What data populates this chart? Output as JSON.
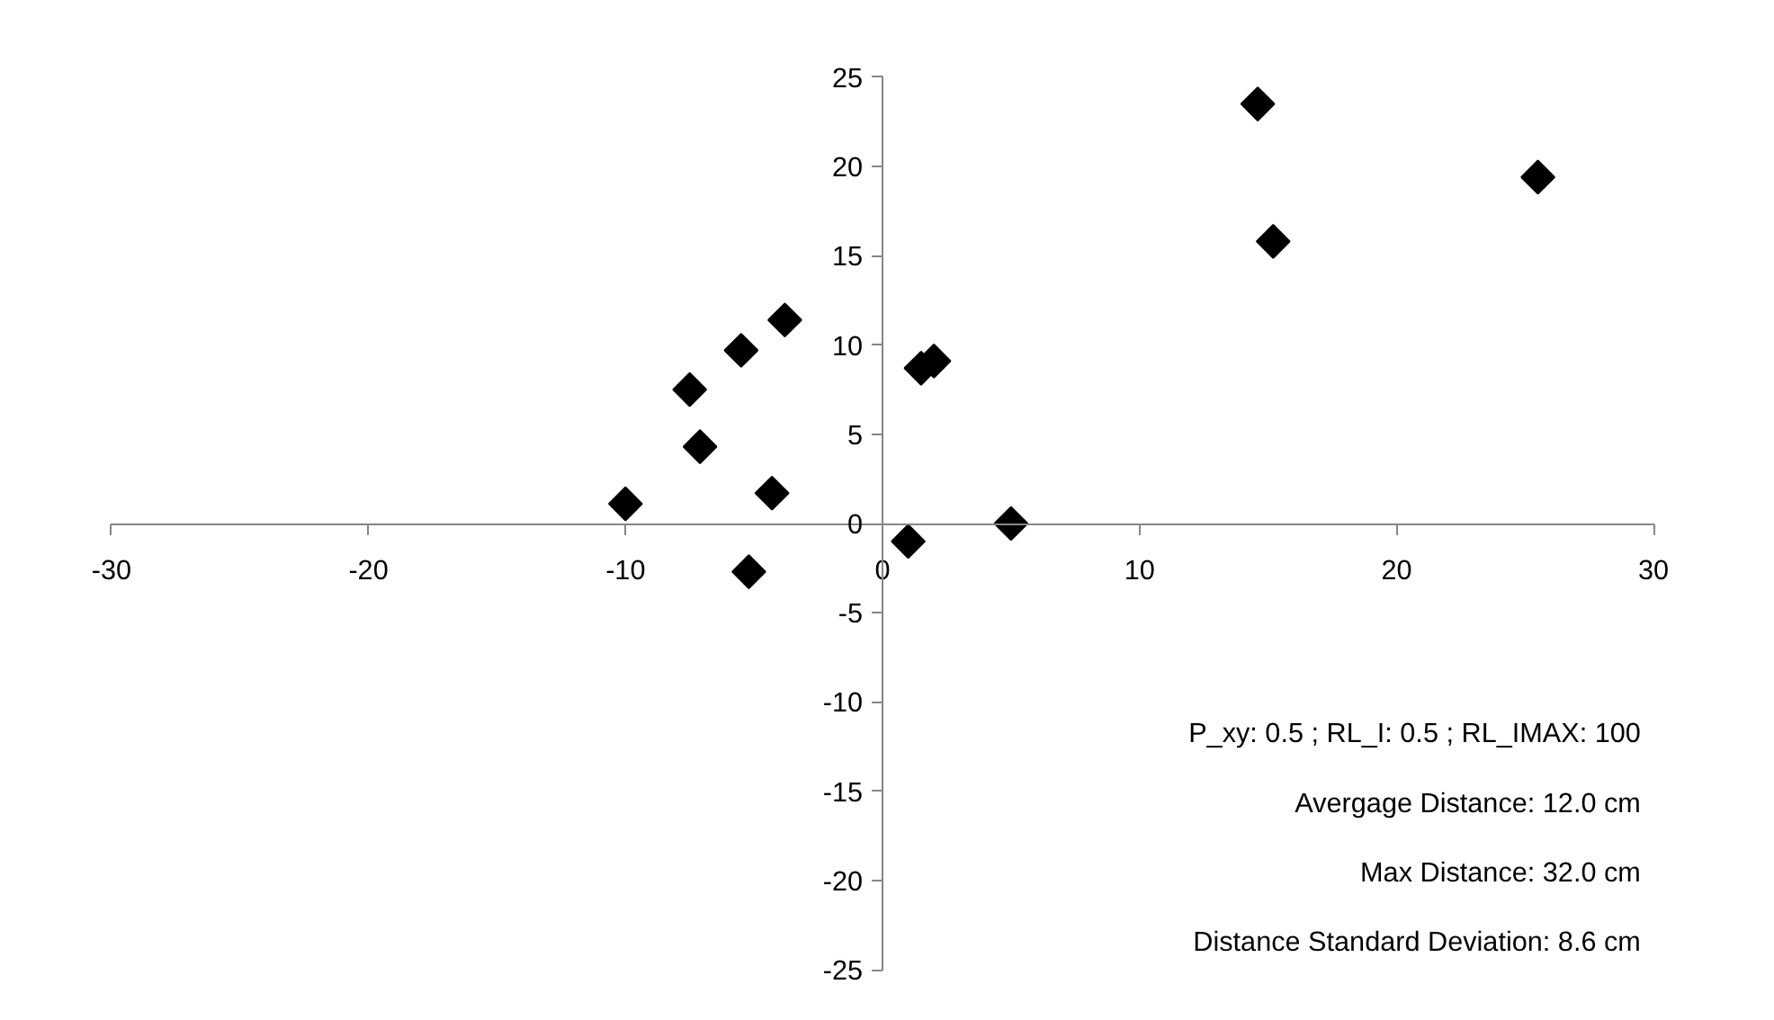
{
  "chart_data": {
    "type": "scatter",
    "marker": "diamond",
    "xlim": [
      -30,
      30
    ],
    "ylim": [
      -25,
      25
    ],
    "xticks": [
      -30,
      -20,
      -10,
      0,
      10,
      20,
      30
    ],
    "yticks": [
      -25,
      -20,
      -15,
      -10,
      -5,
      0,
      5,
      10,
      15,
      20,
      25
    ],
    "series": [
      {
        "color": "#000000",
        "x": [
          -10.0,
          -7.5,
          -7.1,
          -5.5,
          -3.8,
          -4.3,
          -5.2,
          1.0,
          1.5,
          2.0,
          5.0,
          14.6,
          15.2,
          25.5
        ],
        "values": [
          1.1,
          7.5,
          4.3,
          9.7,
          11.4,
          1.7,
          -2.7,
          -1.0,
          8.7,
          9.1,
          0.0,
          23.5,
          15.8,
          19.4
        ]
      }
    ],
    "annotations": [
      "P_xy: 0.5 ; RL_I: 0.5 ; RL_IMAX: 100",
      "Avergage Distance: 12.0 cm",
      "Max Distance: 32.0 cm",
      "Distance Standard Deviation: 8.6 cm"
    ]
  }
}
